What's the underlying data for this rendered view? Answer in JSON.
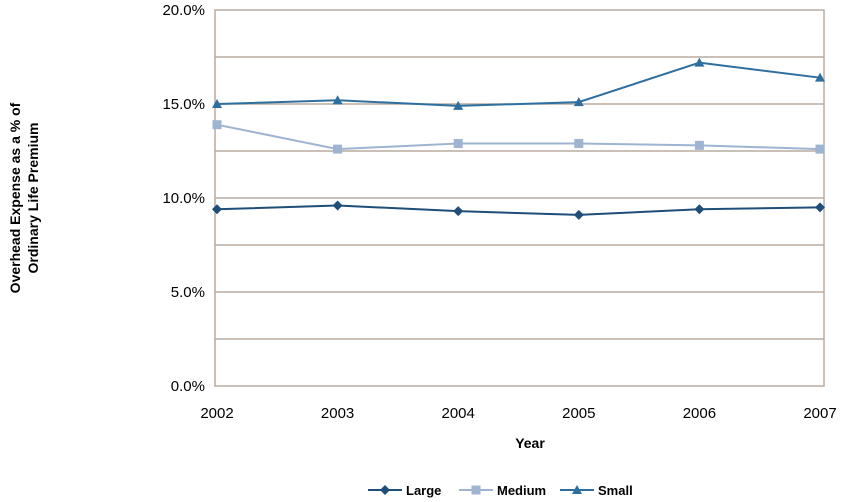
{
  "chart_data": {
    "type": "line",
    "title": "",
    "xlabel": "Year",
    "ylabel_lines": [
      "Overhead Expense as a % of",
      "Ordinary Life Premium"
    ],
    "x": [
      "2002",
      "2003",
      "2004",
      "2005",
      "2006",
      "2007"
    ],
    "ylim": [
      0,
      20
    ],
    "y_ticks": [
      0,
      5,
      10,
      15,
      20
    ],
    "y_tick_labels": [
      "0.0%",
      "5.0%",
      "10.0%",
      "15.0%",
      "20.0%"
    ],
    "grid": true,
    "legend_position": "bottom",
    "series": [
      {
        "name": "Large",
        "values": [
          9.4,
          9.6,
          9.3,
          9.1,
          9.4,
          9.5
        ],
        "color": "#1f4e79",
        "marker": "diamond"
      },
      {
        "name": "Medium",
        "values": [
          13.9,
          12.6,
          12.9,
          12.9,
          12.8,
          12.6
        ],
        "color": "#9fb4d0",
        "marker": "square"
      },
      {
        "name": "Small",
        "values": [
          15.0,
          15.2,
          14.9,
          15.1,
          17.2,
          16.4
        ],
        "color": "#2f6fa0",
        "marker": "triangle"
      }
    ],
    "colors": {
      "grid": "#b8aca0",
      "frame": "#b8aca0",
      "small_marker_accent": "#f0c000"
    }
  }
}
